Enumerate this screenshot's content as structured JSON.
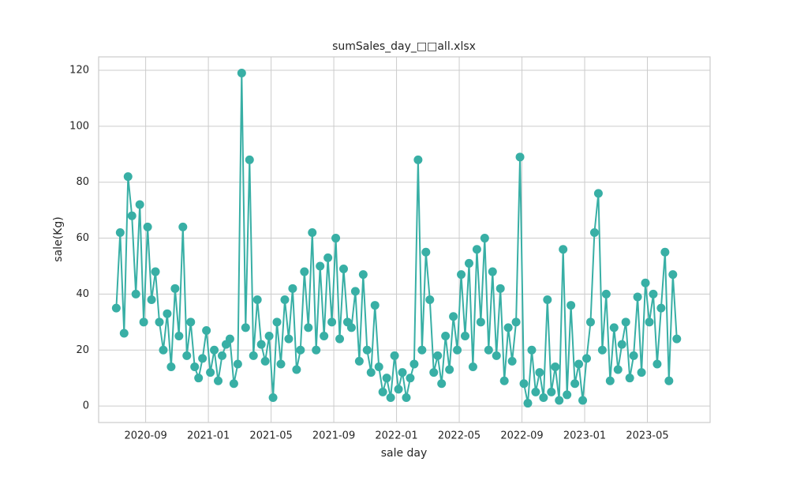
{
  "chart_data": {
    "type": "line",
    "title": "sumSales_day_□□all.xlsx",
    "x_label": "sale day",
    "y_label": "sale(Kg)",
    "x": [
      "2020-07",
      "2020-07",
      "2020-07",
      "2020-07",
      "2020-08",
      "2020-08",
      "2020-08",
      "2020-08",
      "2020-09",
      "2020-09",
      "2020-09",
      "2020-09",
      "2020-10",
      "2020-10",
      "2020-10",
      "2020-10",
      "2020-11",
      "2020-11",
      "2020-11",
      "2020-11",
      "2020-12",
      "2020-12",
      "2020-12",
      "2020-12",
      "2021-01",
      "2021-01",
      "2021-01",
      "2021-01",
      "2021-02",
      "2021-02",
      "2021-02",
      "2021-02",
      "2021-03",
      "2021-03",
      "2021-03",
      "2021-03",
      "2021-04",
      "2021-04",
      "2021-04",
      "2021-04",
      "2021-05",
      "2021-05",
      "2021-05",
      "2021-05",
      "2021-06",
      "2021-06",
      "2021-06",
      "2021-06",
      "2021-07",
      "2021-07",
      "2021-07",
      "2021-07",
      "2021-08",
      "2021-08",
      "2021-08",
      "2021-08",
      "2021-09",
      "2021-09",
      "2021-09",
      "2021-09",
      "2021-10",
      "2021-10",
      "2021-10",
      "2021-10",
      "2021-11",
      "2021-11",
      "2021-11",
      "2021-11",
      "2021-12",
      "2021-12",
      "2021-12",
      "2021-12",
      "2022-01",
      "2022-01",
      "2022-01",
      "2022-01",
      "2022-02",
      "2022-02",
      "2022-02",
      "2022-02",
      "2022-03",
      "2022-03",
      "2022-03",
      "2022-03",
      "2022-04",
      "2022-04",
      "2022-04",
      "2022-04",
      "2022-05",
      "2022-05",
      "2022-05",
      "2022-05",
      "2022-06",
      "2022-06",
      "2022-06",
      "2022-06",
      "2022-07",
      "2022-07",
      "2022-07",
      "2022-07",
      "2022-08",
      "2022-08",
      "2022-08",
      "2022-08",
      "2022-09",
      "2022-09",
      "2022-09",
      "2022-09",
      "2022-10",
      "2022-10",
      "2022-10",
      "2022-10",
      "2022-11",
      "2022-11",
      "2022-11",
      "2022-11",
      "2022-12",
      "2022-12",
      "2022-12",
      "2022-12",
      "2023-01",
      "2023-01",
      "2023-01",
      "2023-01",
      "2023-02",
      "2023-02",
      "2023-02",
      "2023-02",
      "2023-03",
      "2023-03",
      "2023-03",
      "2023-03",
      "2023-04",
      "2023-04",
      "2023-04",
      "2023-04",
      "2023-05",
      "2023-05",
      "2023-05",
      "2023-05",
      "2023-06",
      "2023-06",
      "2023-06",
      "2023-06"
    ],
    "series": [
      {
        "color": "#38afa5",
        "values": [
          35,
          62,
          26,
          82,
          68,
          40,
          72,
          30,
          64,
          38,
          48,
          30,
          20,
          33,
          14,
          42,
          25,
          64,
          18,
          30,
          14,
          10,
          17,
          27,
          12,
          20,
          9,
          18,
          22,
          24,
          8,
          15,
          119,
          28,
          88,
          18,
          38,
          22,
          16,
          25,
          3,
          30,
          15,
          38,
          24,
          42,
          13,
          20,
          48,
          28,
          62,
          20,
          50,
          25,
          53,
          30,
          60,
          24,
          49,
          30,
          28,
          41,
          16,
          47,
          20,
          12,
          36,
          14,
          5,
          10,
          3,
          18,
          6,
          12,
          3,
          10,
          15,
          88,
          20,
          55,
          38,
          12,
          18,
          8,
          25,
          13,
          32,
          20,
          47,
          25,
          51,
          14,
          56,
          30,
          60,
          20,
          48,
          18,
          42,
          9,
          28,
          16,
          30,
          89,
          8,
          1,
          20,
          5,
          12,
          3,
          38,
          5,
          14,
          2,
          56,
          4,
          36,
          8,
          15,
          2,
          17,
          30,
          62,
          76,
          20,
          40,
          9,
          28,
          13,
          22,
          30,
          10,
          18,
          39,
          12,
          44,
          30,
          40,
          15,
          35,
          55,
          9,
          47,
          24
        ]
      }
    ],
    "xlim": [
      "2020-06",
      "2023-09"
    ],
    "xticks": [
      "2020-09",
      "2021-01",
      "2021-05",
      "2021-09",
      "2022-01",
      "2022-05",
      "2022-09",
      "2023-01",
      "2023-05"
    ],
    "ylim": [
      -5.9,
      124.8
    ],
    "yticks": [
      0,
      20,
      40,
      60,
      80,
      100,
      120
    ],
    "grid": true
  }
}
